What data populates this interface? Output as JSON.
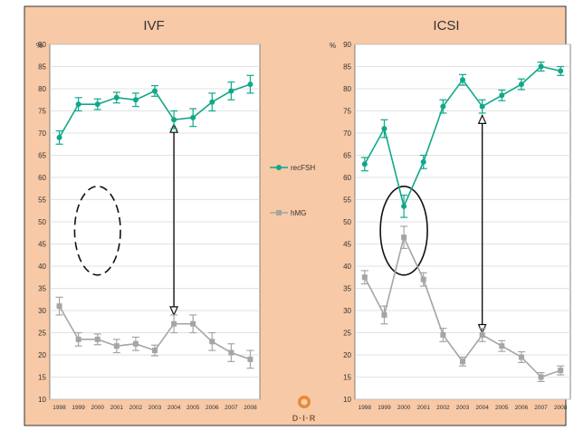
{
  "legend": {
    "recfsh": "recFSH",
    "hmg": "hMG"
  },
  "logo_text": "D·I·R",
  "colors": {
    "background": "#f7c9a6",
    "plot_area": "#ffffff",
    "grid": "#d9d9d9",
    "recfsh": "#0fa889",
    "hmg": "#a5a5a5",
    "annotation": "#111111",
    "logo": "#e98a3a"
  },
  "chart_data": [
    {
      "type": "line",
      "title": "IVF",
      "y_unit_label": "%",
      "ylim": [
        10,
        90
      ],
      "ytick_step": 5,
      "grid": true,
      "x": [
        "1998",
        "1999",
        "2000",
        "2001",
        "2002",
        "2003",
        "2004",
        "2005",
        "2006",
        "2007",
        "2008"
      ],
      "series": [
        {
          "name": "recFSH",
          "values": [
            69,
            76.5,
            76.5,
            78,
            77.5,
            79.5,
            73,
            73.5,
            77,
            79.5,
            81
          ],
          "error": [
            1.5,
            1.5,
            1.2,
            1.2,
            1.5,
            1.2,
            2,
            2,
            2,
            2,
            2
          ]
        },
        {
          "name": "hMG",
          "values": [
            31,
            23.5,
            23.5,
            22,
            22.5,
            21,
            27,
            27,
            23,
            20.5,
            19
          ],
          "error": [
            2,
            1.5,
            1.2,
            1.5,
            1.5,
            1.2,
            2,
            2,
            2,
            2,
            2
          ]
        }
      ],
      "annotations": [
        {
          "kind": "dashed-ellipse",
          "x": "2000",
          "y_range": [
            38,
            58
          ]
        },
        {
          "kind": "double-arrow",
          "x": "2004",
          "y_range": [
            29,
            72
          ]
        }
      ]
    },
    {
      "type": "line",
      "title": "ICSI",
      "y_unit_label": "%",
      "ylim": [
        10,
        90
      ],
      "ytick_step": 5,
      "grid": true,
      "x": [
        "1998",
        "1999",
        "2000",
        "2001",
        "2002",
        "2003",
        "2004",
        "2005",
        "2006",
        "2007",
        "2008"
      ],
      "series": [
        {
          "name": "recFSH",
          "values": [
            63,
            71,
            53.5,
            63.5,
            76,
            82,
            76,
            78.5,
            81,
            85,
            84
          ],
          "error": [
            1.5,
            2,
            2.5,
            1.5,
            1.5,
            1.2,
            1.5,
            1.2,
            1.2,
            1,
            1
          ]
        },
        {
          "name": "hMG",
          "values": [
            37.5,
            29,
            46.5,
            37,
            24.5,
            18.5,
            24.5,
            22,
            19.5,
            15,
            16.5
          ],
          "error": [
            1.5,
            2,
            2.5,
            1.5,
            1.5,
            1,
            1.5,
            1.2,
            1.2,
            1,
            1
          ]
        }
      ],
      "annotations": [
        {
          "kind": "solid-ellipse",
          "x": "2000",
          "y_range": [
            38,
            58
          ]
        },
        {
          "kind": "double-arrow",
          "x": "2004",
          "y_range": [
            25,
            74
          ]
        }
      ]
    }
  ]
}
